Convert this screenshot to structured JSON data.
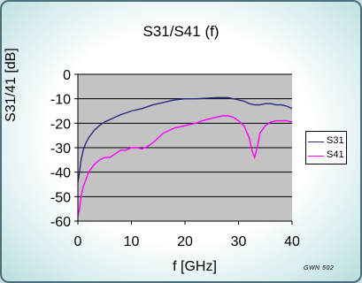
{
  "title": "S31/S41 (f)",
  "footnote": "GWN 502",
  "chart_data": {
    "type": "line",
    "title": "S31/S41 (f)",
    "xlabel": "f [GHz]",
    "ylabel": "S31/41 [dB]",
    "xlim": [
      0,
      40
    ],
    "ylim": [
      -60,
      0
    ],
    "xticks": [
      0,
      10,
      20,
      30,
      40
    ],
    "yticks": [
      0,
      -10,
      -20,
      -30,
      -40,
      -50,
      -60
    ],
    "grid": "horizontal",
    "legend": "right",
    "series": [
      {
        "name": "S31",
        "color": "#2c2a7e",
        "x": [
          0,
          0.3,
          0.6,
          1,
          1.5,
          2,
          3,
          4,
          5,
          6,
          7,
          8,
          10,
          12,
          14,
          16,
          18,
          20,
          22,
          24,
          26,
          28,
          30,
          31,
          32,
          33,
          34,
          35,
          36,
          37,
          38,
          39,
          40
        ],
        "y": [
          -44,
          -40,
          -35,
          -31,
          -28,
          -26,
          -23,
          -21,
          -19.5,
          -18.5,
          -17.5,
          -16.5,
          -15,
          -14,
          -12.5,
          -11.5,
          -10.5,
          -10,
          -10,
          -9.8,
          -9.5,
          -9.5,
          -10.5,
          -11,
          -12,
          -12.5,
          -12.5,
          -12,
          -12,
          -12.5,
          -12.5,
          -13,
          -14
        ]
      },
      {
        "name": "S41",
        "color": "#ff00ff",
        "x": [
          0,
          0.3,
          0.6,
          1,
          1.5,
          2,
          3,
          4,
          5,
          6,
          7,
          8,
          9,
          10,
          11,
          12,
          13,
          14,
          15,
          16,
          17,
          18,
          19,
          20,
          22,
          24,
          26,
          27,
          28,
          29,
          30,
          31,
          32,
          32.5,
          33,
          33.5,
          34,
          35,
          36,
          37,
          38,
          39,
          40
        ],
        "y": [
          -58,
          -55,
          -50,
          -46,
          -43,
          -40,
          -37,
          -35,
          -34,
          -34,
          -32.5,
          -31,
          -31,
          -30,
          -30,
          -30.5,
          -29.5,
          -28,
          -26,
          -24,
          -23,
          -22,
          -21.5,
          -21,
          -20,
          -18.5,
          -17.5,
          -17,
          -17,
          -17.5,
          -19,
          -21,
          -26,
          -31,
          -34,
          -30,
          -24,
          -21,
          -19.5,
          -19,
          -19,
          -19,
          -19.5
        ]
      }
    ]
  }
}
